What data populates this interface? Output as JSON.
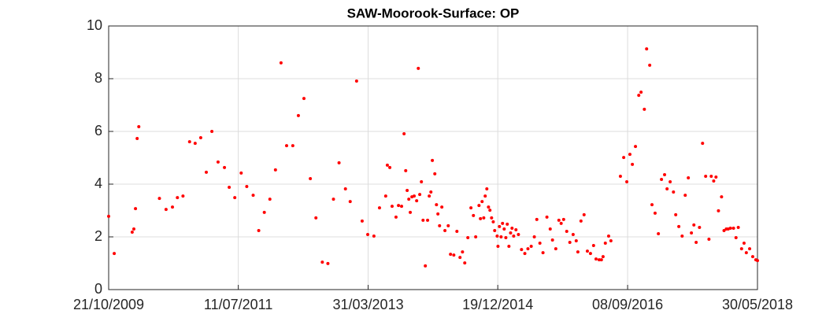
{
  "chart_data": {
    "type": "scatter",
    "title": "SAW-Moorook-Surface: OP",
    "color": "#ff0000",
    "grid": true,
    "xlim": [
      "21/10/2009",
      "30/05/2018"
    ],
    "xticks": [
      "21/10/2009",
      "11/07/2011",
      "31/03/2013",
      "19/12/2014",
      "08/09/2016",
      "30/05/2018"
    ],
    "ylim": [
      0,
      10
    ],
    "yticks": [
      0,
      2,
      4,
      6,
      8,
      10
    ],
    "x": [
      "21/10/2009",
      "17/11/2009",
      "12/02/2010",
      "20/02/2010",
      "28/02/2010",
      "08/03/2010",
      "16/03/2010",
      "24/06/2010",
      "26/07/2010",
      "26/08/2010",
      "19/09/2010",
      "16/10/2010",
      "17/11/2010",
      "14/12/2010",
      "10/01/2011",
      "06/02/2011",
      "05/03/2011",
      "04/04/2011",
      "05/05/2011",
      "28/05/2011",
      "24/06/2011",
      "25/07/2011",
      "21/08/2011",
      "21/09/2011",
      "18/10/2011",
      "14/11/2011",
      "11/12/2011",
      "07/01/2012",
      "03/02/2012",
      "01/03/2012",
      "31/03/2012",
      "27/04/2012",
      "24/05/2012",
      "24/06/2012",
      "21/07/2012",
      "21/08/2012",
      "17/09/2012",
      "14/10/2012",
      "10/11/2012",
      "11/12/2012",
      "03/01/2013",
      "03/02/2013",
      "02/03/2013",
      "29/03/2013",
      "28/04/2013",
      "25/05/2013",
      "24/06/2013",
      "02/07/2013",
      "14/07/2013",
      "25/07/2013",
      "13/08/2013",
      "25/08/2013",
      "09/09/2013",
      "21/09/2013",
      "29/09/2013",
      "06/10/2013",
      "14/10/2013",
      "21/10/2013",
      "29/10/2013",
      "09/11/2013",
      "21/11/2013",
      "29/11/2013",
      "06/12/2013",
      "14/12/2013",
      "22/12/2013",
      "02/01/2014",
      "13/01/2014",
      "21/01/2014",
      "29/01/2014",
      "05/02/2014",
      "17/02/2014",
      "25/02/2014",
      "04/03/2014",
      "12/03/2014",
      "23/03/2014",
      "07/04/2014",
      "23/04/2014",
      "04/05/2014",
      "20/05/2014",
      "04/06/2014",
      "19/06/2014",
      "01/07/2014",
      "12/07/2014",
      "27/07/2014",
      "11/08/2014",
      "23/08/2014",
      "03/09/2014",
      "19/09/2014",
      "26/09/2014",
      "04/10/2014",
      "12/10/2014",
      "19/10/2014",
      "27/10/2014",
      "04/11/2014",
      "11/11/2014",
      "19/11/2014",
      "27/11/2014",
      "04/12/2014",
      "16/12/2014",
      "20/12/2014",
      "27/12/2014",
      "04/01/2015",
      "11/01/2015",
      "19/01/2015",
      "27/01/2015",
      "03/02/2015",
      "11/02/2015",
      "19/02/2015",
      "26/02/2015",
      "06/03/2015",
      "17/03/2015",
      "29/03/2015",
      "13/04/2015",
      "29/04/2015",
      "14/05/2015",
      "30/05/2015",
      "14/06/2015",
      "26/06/2015",
      "11/07/2015",
      "26/07/2015",
      "14/08/2015",
      "30/08/2015",
      "10/09/2015",
      "26/09/2015",
      "11/10/2015",
      "22/10/2015",
      "03/11/2015",
      "18/11/2015",
      "03/12/2015",
      "19/12/2015",
      "03/01/2016",
      "11/01/2016",
      "26/01/2016",
      "10/02/2016",
      "26/02/2016",
      "12/03/2016",
      "27/03/2016",
      "08/04/2016",
      "23/04/2016",
      "04/05/2016",
      "12/05/2016",
      "23/05/2016",
      "08/06/2016",
      "19/06/2016",
      "04/08/2016",
      "20/08/2016",
      "04/09/2016",
      "19/09/2016",
      "01/10/2016",
      "16/10/2016",
      "01/11/2016",
      "12/11/2016",
      "28/11/2016",
      "09/12/2016",
      "24/12/2016",
      "04/01/2017",
      "19/01/2017",
      "04/02/2017",
      "19/02/2017",
      "06/03/2017",
      "18/03/2017",
      "02/04/2017",
      "18/04/2017",
      "29/04/2017",
      "14/05/2017",
      "30/05/2017",
      "14/06/2017",
      "29/06/2017",
      "14/07/2017",
      "26/07/2017",
      "06/08/2017",
      "22/08/2017",
      "06/09/2017",
      "21/09/2017",
      "07/10/2017",
      "18/10/2017",
      "30/10/2017",
      "10/11/2017",
      "22/11/2017",
      "07/12/2017",
      "19/12/2017",
      "30/12/2017",
      "08/01/2018",
      "19/01/2018",
      "03/02/2018",
      "15/02/2018",
      "26/02/2018",
      "14/03/2018",
      "26/03/2018",
      "06/04/2018",
      "22/04/2018",
      "07/05/2018",
      "22/05/2018",
      "30/05/2018"
    ],
    "values": [
      2.78,
      1.37,
      2.18,
      2.3,
      3.07,
      5.73,
      6.18,
      3.46,
      3.04,
      3.13,
      3.49,
      3.55,
      5.61,
      5.55,
      5.76,
      4.45,
      6.0,
      4.84,
      4.63,
      3.88,
      3.49,
      4.42,
      3.91,
      3.58,
      2.24,
      2.93,
      3.43,
      4.54,
      8.6,
      5.46,
      5.46,
      6.6,
      7.25,
      4.21,
      2.72,
      1.04,
      0.99,
      3.43,
      4.81,
      3.82,
      3.34,
      7.91,
      2.6,
      2.09,
      2.03,
      3.1,
      3.55,
      4.72,
      4.63,
      3.16,
      2.75,
      3.19,
      3.16,
      5.91,
      4.51,
      3.76,
      3.43,
      2.93,
      3.52,
      3.55,
      3.37,
      8.39,
      3.61,
      4.09,
      2.63,
      0.9,
      2.63,
      3.55,
      3.7,
      4.9,
      4.39,
      3.22,
      2.87,
      2.42,
      3.13,
      2.24,
      2.42,
      1.34,
      1.31,
      2.21,
      1.22,
      1.43,
      1.01,
      1.97,
      3.1,
      2.81,
      2.0,
      3.19,
      2.69,
      3.34,
      2.72,
      3.55,
      3.82,
      3.13,
      3.01,
      2.72,
      2.57,
      2.24,
      2.03,
      1.64,
      2.39,
      2.0,
      2.51,
      2.3,
      1.97,
      2.48,
      1.64,
      2.15,
      2.33,
      2.03,
      2.27,
      2.09,
      1.52,
      1.37,
      1.55,
      1.64,
      2.0,
      2.66,
      1.76,
      1.4,
      2.75,
      2.3,
      1.88,
      1.55,
      2.63,
      2.51,
      2.66,
      2.21,
      1.79,
      2.09,
      1.85,
      1.43,
      2.6,
      2.84,
      1.46,
      1.37,
      1.67,
      1.16,
      1.13,
      1.13,
      1.25,
      1.76,
      2.03,
      1.85,
      4.3,
      5.01,
      4.09,
      5.13,
      4.75,
      5.43,
      7.37,
      7.49,
      6.84,
      9.13,
      8.51,
      3.22,
      2.9,
      2.12,
      4.18,
      4.36,
      3.82,
      4.09,
      3.7,
      2.84,
      2.39,
      2.03,
      3.58,
      4.24,
      2.15,
      2.45,
      1.79,
      2.36,
      5.55,
      4.3,
      1.91,
      4.3,
      4.12,
      4.27,
      2.99,
      3.52,
      2.24,
      2.3,
      2.3,
      2.33,
      2.33,
      1.97,
      2.36,
      1.55,
      1.76,
      1.4,
      1.55,
      1.25,
      1.13,
      1.1
    ]
  }
}
